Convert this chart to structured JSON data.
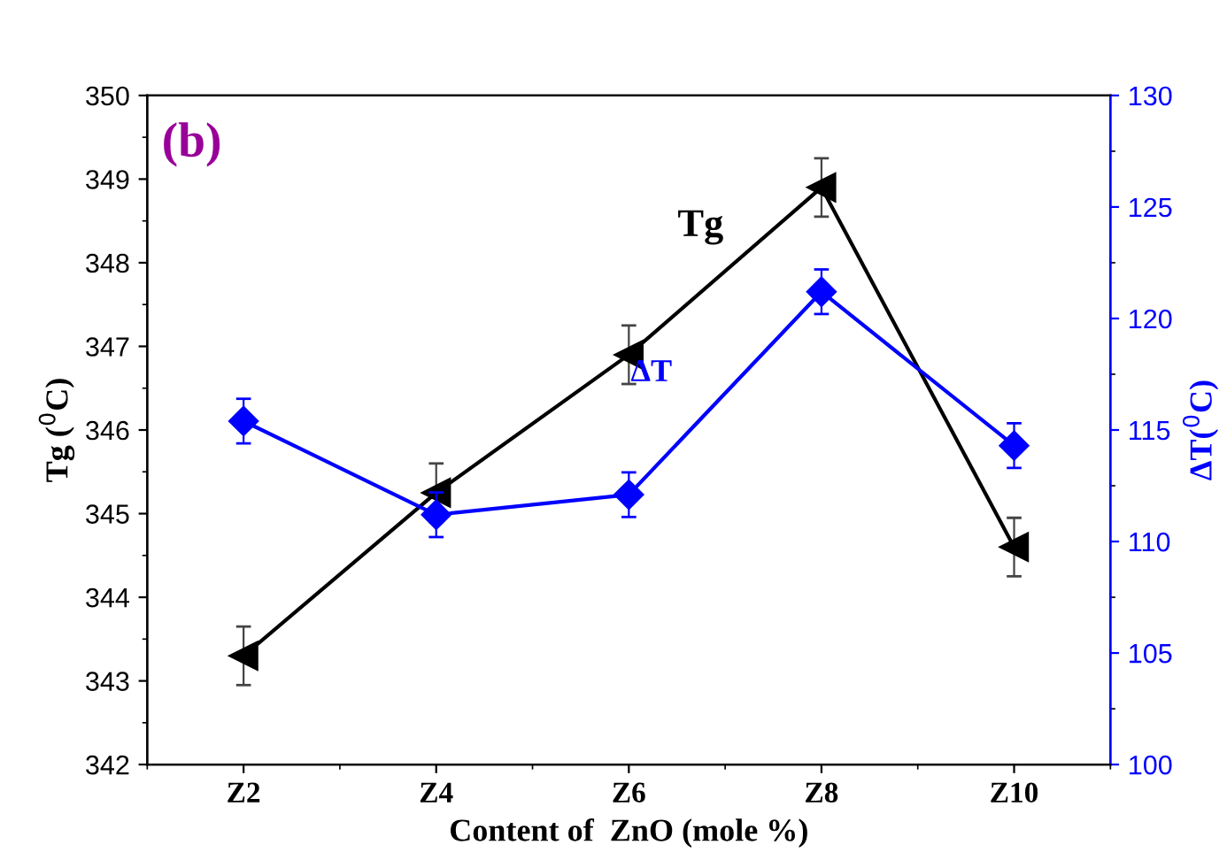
{
  "chart_data": {
    "type": "line",
    "xlabel": "Content of  ZnO (mole %)",
    "ylabel": "Tg ($^{0}$C)",
    "y2label": "ΔT($^{0}$C)",
    "annotations": [
      "(b)"
    ],
    "categories": [
      "Z2",
      "Z4",
      "Z6",
      "Z8",
      "Z10"
    ],
    "series": [
      {
        "name": "Tg",
        "color": "#000000",
        "marker": "triangle",
        "values": [
          343.3,
          345.25,
          346.9,
          348.9,
          344.6
        ],
        "errors": [
          0.35,
          0.35,
          0.35,
          0.35,
          0.35
        ]
      },
      {
        "name": "ΔT",
        "color": "#0000ff",
        "marker": "diamond",
        "axis": "y2",
        "values": [
          115.4,
          111.2,
          112.1,
          121.2,
          114.3
        ],
        "errors": [
          1.0,
          1.0,
          1.0,
          1.0,
          1.0
        ]
      }
    ],
    "ylim": [
      342,
      350
    ],
    "yticks": [
      342,
      343,
      344,
      345,
      346,
      347,
      348,
      349,
      350
    ],
    "y2lim": [
      100,
      130
    ],
    "y2ticks": [
      100,
      105,
      110,
      115,
      120,
      125,
      130
    ],
    "grid": false,
    "legend": false
  }
}
